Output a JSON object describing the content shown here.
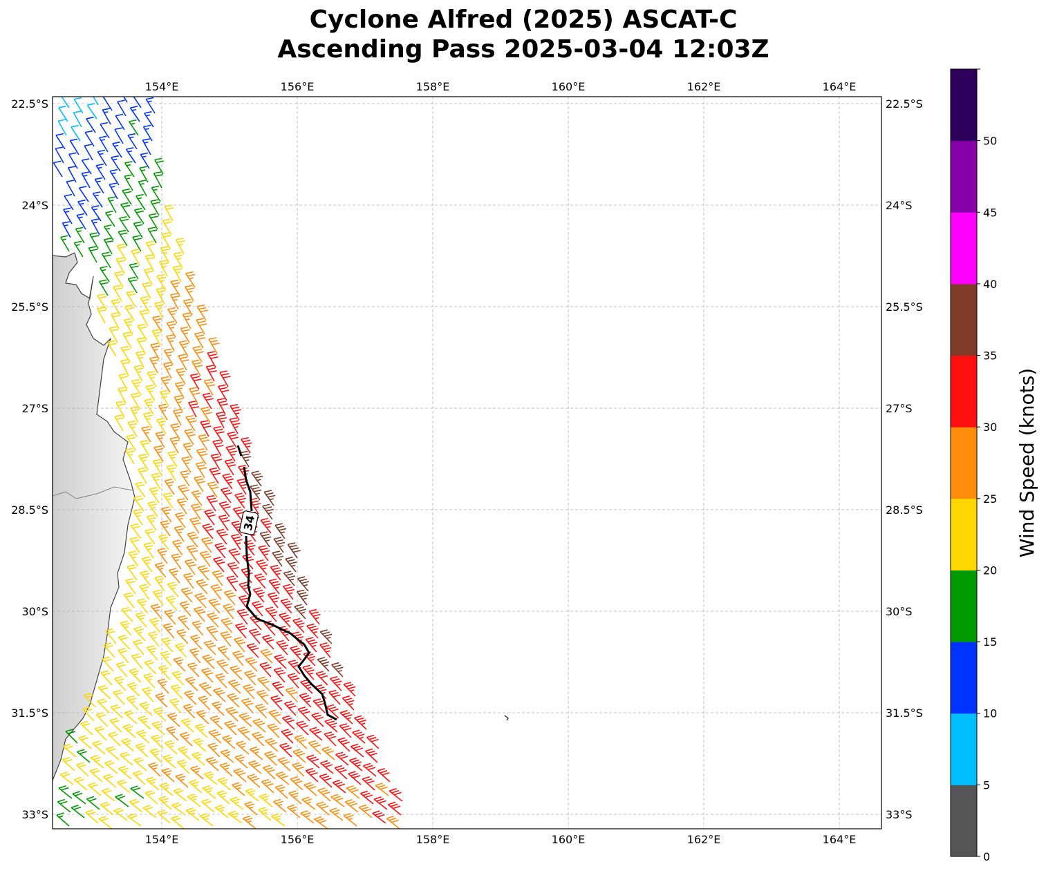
{
  "title": {
    "line1": "Cyclone Alfred (2025) ASCAT-C",
    "line2": "Ascending Pass 2025-03-04 12:03Z"
  },
  "map": {
    "lon_labels": [
      "154°E",
      "156°E",
      "158°E",
      "160°E",
      "162°E",
      "164°E"
    ],
    "lon_values": [
      154,
      156,
      158,
      160,
      162,
      164
    ],
    "lat_labels": [
      "22.5°S",
      "24°S",
      "25.5°S",
      "27°S",
      "28.5°S",
      "30°S",
      "31.5°S",
      "33°S"
    ],
    "lat_values": [
      22.5,
      24,
      25.5,
      27,
      28.5,
      30,
      31.5,
      33
    ],
    "gridlines": true,
    "contour_label": "34",
    "contour_color": "#000000",
    "land_color": "#dcdcdc",
    "coast_color": "#404040"
  },
  "colorbar": {
    "label": "Wind Speed (knots)",
    "tick_labels": [
      "0",
      "5",
      "10",
      "15",
      "20",
      "25",
      "30",
      "35",
      "40",
      "45",
      "50"
    ],
    "bounds": [
      0,
      5,
      10,
      15,
      20,
      25,
      30,
      35,
      40,
      45,
      50,
      55
    ],
    "colors": [
      "#555555",
      "#00bfff",
      "#0033ff",
      "#009900",
      "#ffd700",
      "#ff8c0a",
      "#ff1010",
      "#7f3b28",
      "#ff00ff",
      "#8800aa",
      "#2d005c"
    ]
  }
}
